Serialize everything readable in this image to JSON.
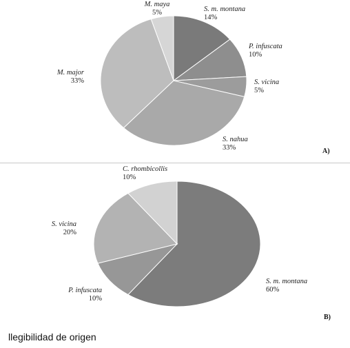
{
  "chart_data": [
    {
      "type": "pie",
      "panel": "A)",
      "slices": [
        {
          "label": "S. m. montana",
          "value": 14,
          "pct": "14%",
          "color": "#7a7a7a"
        },
        {
          "label": "P. infuscata",
          "value": 10,
          "pct": "10%",
          "color": "#8e8e8e"
        },
        {
          "label": "S. vicina",
          "value": 5,
          "pct": "5%",
          "color": "#9c9c9c"
        },
        {
          "label": "S. nahua",
          "value": 33,
          "pct": "33%",
          "color": "#a9a9a9"
        },
        {
          "label": "M. major",
          "value": 33,
          "pct": "33%",
          "color": "#bdbdbd"
        },
        {
          "label": "M. maya",
          "value": 5,
          "pct": "5%",
          "color": "#d6d6d6"
        }
      ]
    },
    {
      "type": "pie",
      "panel": "B)",
      "slices": [
        {
          "label": "S. m. montana",
          "value": 60,
          "pct": "60%",
          "color": "#7c7c7c"
        },
        {
          "label": "P. infuscata",
          "value": 10,
          "pct": "10%",
          "color": "#979797"
        },
        {
          "label": "S. vicina",
          "value": 20,
          "pct": "20%",
          "color": "#b3b3b3"
        },
        {
          "label": "C. rhombicollis",
          "value": 10,
          "pct": "10%",
          "color": "#d2d2d2"
        }
      ]
    }
  ],
  "caption": "llegibilidad de origen"
}
